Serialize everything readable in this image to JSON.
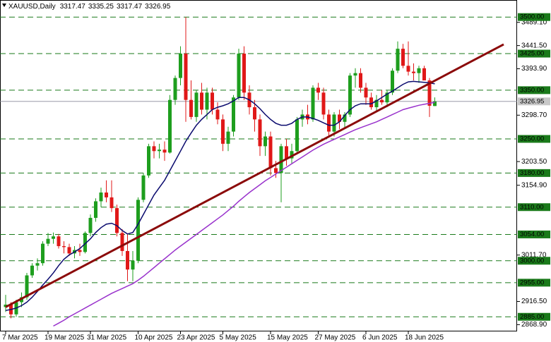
{
  "chart_data": {
    "type": "candlestick",
    "title": "XAUUSD,Daily",
    "up_color": "#1e9e1e",
    "down_color": "#e01818",
    "categories": [
      "7 Mar 2025",
      null,
      null,
      null,
      null,
      null,
      null,
      null,
      "19 Mar 2025",
      null,
      null,
      null,
      null,
      null,
      null,
      null,
      "31 Mar 2025",
      null,
      null,
      null,
      null,
      null,
      null,
      null,
      null,
      "10 Apr 2025",
      null,
      null,
      null,
      null,
      null,
      null,
      null,
      "23 Apr 2025",
      null,
      null,
      null,
      null,
      null,
      null,
      null,
      "5 May 2025",
      null,
      null,
      null,
      null,
      null,
      null,
      null,
      null,
      "15 May 2025",
      null,
      null,
      null,
      null,
      null,
      null,
      null,
      null,
      "27 May 2025",
      null,
      null,
      null,
      null,
      null,
      null,
      null,
      null,
      "6 Jun 2025",
      null,
      null,
      null,
      null,
      null,
      null,
      null,
      "18 Jun 2025",
      null,
      null,
      null,
      null,
      null
    ],
    "open": [
      2905,
      2910,
      2890,
      2915,
      2925,
      2970,
      2990,
      2995,
      3035,
      3045,
      3050,
      3030,
      3028,
      3015,
      3022,
      3018,
      3057,
      3088,
      3122,
      3140,
      3130,
      3108,
      3057,
      3020,
      2982,
      3000,
      3125,
      3175,
      3235,
      3225,
      3228,
      3222,
      3330,
      3375,
      3425,
      3330,
      3295,
      3345,
      3310,
      3345,
      3310,
      3290,
      3240,
      3265,
      3335,
      3425,
      3345,
      3315,
      3290,
      3235,
      3255,
      3190,
      3180,
      3235,
      3210,
      3225,
      3290,
      3300,
      3290,
      3355,
      3345,
      3300,
      3265,
      3300,
      3285,
      3300,
      3380,
      3385,
      3355,
      3335,
      3315,
      3330,
      3325,
      3345,
      3390,
      3435,
      3400,
      3388,
      3385,
      3395,
      3370,
      3317.47
    ],
    "high": [
      2930,
      2915,
      2920,
      2935,
      2975,
      2995,
      3005,
      3040,
      3057,
      3058,
      3055,
      3040,
      3035,
      3030,
      3035,
      3060,
      3095,
      3128,
      3150,
      3165,
      3165,
      3115,
      3065,
      3055,
      3020,
      3130,
      3180,
      3240,
      3245,
      3240,
      3245,
      3340,
      3380,
      3440,
      3500,
      3370,
      3350,
      3365,
      3355,
      3355,
      3325,
      3300,
      3275,
      3340,
      3435,
      3440,
      3360,
      3330,
      3300,
      3265,
      3265,
      3205,
      3240,
      3250,
      3240,
      3295,
      3310,
      3320,
      3360,
      3365,
      3355,
      3310,
      3305,
      3310,
      3305,
      3385,
      3395,
      3395,
      3365,
      3345,
      3340,
      3350,
      3350,
      3395,
      3450,
      3445,
      3450,
      3405,
      3400,
      3400,
      3375,
      3335.25
    ],
    "low": [
      2895,
      2882,
      2885,
      2905,
      2920,
      2965,
      2980,
      2990,
      3030,
      3035,
      3025,
      3015,
      3010,
      3005,
      3010,
      3015,
      3050,
      3080,
      3110,
      3120,
      3100,
      3050,
      3010,
      2958,
      2958,
      2995,
      3120,
      3170,
      3210,
      3210,
      3205,
      3220,
      3320,
      3360,
      3285,
      3290,
      3285,
      3300,
      3290,
      3300,
      3280,
      3225,
      3225,
      3255,
      3330,
      3330,
      3300,
      3265,
      3215,
      3215,
      3175,
      3170,
      3120,
      3195,
      3200,
      3220,
      3275,
      3280,
      3285,
      3330,
      3290,
      3255,
      3255,
      3270,
      3270,
      3295,
      3355,
      3345,
      3320,
      3310,
      3305,
      3320,
      3315,
      3340,
      3385,
      3395,
      3380,
      3370,
      3365,
      3370,
      3295,
      3317.47
    ],
    "close": [
      2910,
      2890,
      2915,
      2925,
      2970,
      2990,
      2995,
      3035,
      3045,
      3050,
      3030,
      3028,
      3015,
      3022,
      3018,
      3057,
      3088,
      3122,
      3140,
      3130,
      3108,
      3057,
      3020,
      2982,
      3000,
      3125,
      3175,
      3235,
      3225,
      3228,
      3222,
      3330,
      3375,
      3425,
      3330,
      3295,
      3345,
      3310,
      3345,
      3310,
      3290,
      3240,
      3265,
      3335,
      3425,
      3345,
      3315,
      3290,
      3235,
      3255,
      3190,
      3180,
      3235,
      3210,
      3225,
      3290,
      3300,
      3290,
      3355,
      3345,
      3300,
      3265,
      3300,
      3285,
      3300,
      3380,
      3385,
      3355,
      3335,
      3315,
      3330,
      3325,
      3345,
      3390,
      3435,
      3400,
      3388,
      3385,
      3395,
      3370,
      3318,
      3326.95
    ],
    "moving_averages": [
      {
        "color": "#0a0a6e",
        "values": [
          2898,
          2900,
          2903,
          2908,
          2915,
          2925,
          2937,
          2950,
          2962,
          2975,
          2990,
          3003,
          3012,
          3018,
          3025,
          3035,
          3045,
          3058,
          3068,
          3075,
          3077,
          3072,
          3062,
          3055,
          3058,
          3075,
          3095,
          3115,
          3135,
          3150,
          3165,
          3185,
          3205,
          3225,
          3245,
          3262,
          3278,
          3290,
          3300,
          3310,
          3315,
          3318,
          3322,
          3328,
          3335,
          3335,
          3330,
          3322,
          3312,
          3300,
          3290,
          3282,
          3278,
          3278,
          3282,
          3290,
          3295,
          3295,
          3292,
          3288,
          3283,
          3278,
          3278,
          3285,
          3298,
          3310,
          3318,
          3322,
          3322,
          3322,
          3328,
          3335,
          3342,
          3348,
          3355,
          3362,
          3367,
          3368,
          3367,
          3366,
          3365,
          3363
        ]
      },
      {
        "color": "#9932cc",
        "values": [
          null,
          null,
          null,
          null,
          null,
          null,
          null,
          null,
          null,
          2866,
          2872,
          2878,
          2885,
          2891,
          2897,
          2903,
          2909,
          2915,
          2921,
          2927,
          2933,
          2938,
          2943,
          2948,
          2953,
          2960,
          2968,
          2977,
          2986,
          2995,
          3004,
          3013,
          3022,
          3030,
          3038,
          3046,
          3054,
          3062,
          3070,
          3078,
          3086,
          3094,
          3103,
          3112,
          3122,
          3131,
          3140,
          3148,
          3156,
          3164,
          3171,
          3178,
          3185,
          3192,
          3199,
          3206,
          3213,
          3220,
          3227,
          3233,
          3239,
          3244,
          3249,
          3254,
          3259,
          3264,
          3269,
          3273,
          3277,
          3281,
          3285,
          3290,
          3295,
          3300,
          3305,
          3310,
          3313,
          3316,
          3319,
          3321,
          3323,
          3325
        ]
      }
    ],
    "trendline": {
      "color": "#8b0a0a",
      "x": [
        0,
        94
      ],
      "values": [
        2905,
        3444
      ]
    },
    "levels_color": "#1a7a1a",
    "levels": [
      {
        "value": 3500,
        "label": "3500.00"
      },
      {
        "value": 3425,
        "label": "3425.00"
      },
      {
        "value": 3350,
        "label": "3350.00"
      },
      {
        "value": 3250,
        "label": "3250.00"
      },
      {
        "value": 3180,
        "label": "3180.00"
      },
      {
        "value": 3110,
        "label": "3110.00"
      },
      {
        "value": 3054,
        "label": "3054.00"
      },
      {
        "value": 3000,
        "label": "3000.00"
      },
      {
        "value": 2955,
        "label": "2955.00"
      },
      {
        "value": 2885,
        "label": "2885.00"
      }
    ],
    "last_price": {
      "value": 3326.95,
      "label": "3326.95"
    },
    "ylim": [
      2855,
      3535
    ],
    "yticks": [
      {
        "value": 3489.1,
        "label": "3489.10"
      },
      {
        "value": 3441.5,
        "label": "3441.50"
      },
      {
        "value": 3393.9,
        "label": "3393.90"
      },
      {
        "value": 3298.7,
        "label": "3298.70"
      },
      {
        "value": 3203.5,
        "label": "3203.50"
      },
      {
        "value": 3154.9,
        "label": "3154.90"
      },
      {
        "value": 3011.7,
        "label": "3011.70"
      },
      {
        "value": 2916.5,
        "label": "2916.50"
      },
      {
        "value": 2868.9,
        "label": "2868.90"
      }
    ]
  }
}
